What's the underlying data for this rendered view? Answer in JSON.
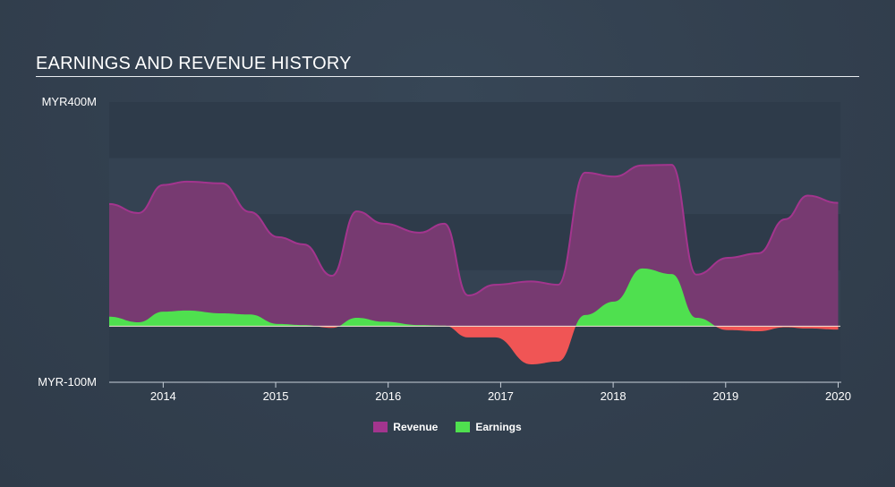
{
  "title": "EARNINGS AND REVENUE HISTORY",
  "colors": {
    "revenue": "#a3358e",
    "revenue_fill": "#7b3a73",
    "earnings": "#4fe04f",
    "loss": "#f05555"
  },
  "chart_data": {
    "type": "area",
    "title": "EARNINGS AND REVENUE HISTORY",
    "ylabel": "MYR",
    "ylim": [
      -100,
      400
    ],
    "ytick_labels": [
      "MYR400M",
      "MYR-100M"
    ],
    "xlim": [
      2013.52,
      2020.02
    ],
    "xticks": [
      2014,
      2015,
      2016,
      2017,
      2018,
      2019,
      2020
    ],
    "xtick_labels": [
      "2014",
      "2015",
      "2016",
      "2017",
      "2018",
      "2019",
      "2020"
    ],
    "grid": true,
    "legend": {
      "position": "bottom-center",
      "entries": [
        "Revenue",
        "Earnings"
      ]
    },
    "x": [
      2013.52,
      2013.78,
      2014.0,
      2014.21,
      2014.52,
      2014.77,
      2015.02,
      2015.25,
      2015.5,
      2015.72,
      2015.96,
      2016.28,
      2016.5,
      2016.71,
      2016.95,
      2017.27,
      2017.51,
      2017.75,
      2018.01,
      2018.26,
      2018.52,
      2018.74,
      2019.02,
      2019.29,
      2019.53,
      2019.73,
      2020.0
    ],
    "series": [
      {
        "name": "Revenue",
        "values": [
          218,
          202,
          252,
          258,
          255,
          204,
          159,
          146,
          90,
          205,
          183,
          167,
          183,
          55,
          74,
          80,
          74,
          274,
          267,
          287,
          288,
          92,
          122,
          130,
          191,
          233,
          220
        ]
      },
      {
        "name": "Earnings",
        "values": [
          17,
          7,
          26,
          28,
          23,
          21,
          4,
          2,
          -3,
          15,
          8,
          2,
          1,
          -20,
          -20,
          -68,
          -63,
          20,
          44,
          103,
          93,
          15,
          -7,
          -9,
          -2,
          -4,
          -6
        ]
      }
    ]
  }
}
